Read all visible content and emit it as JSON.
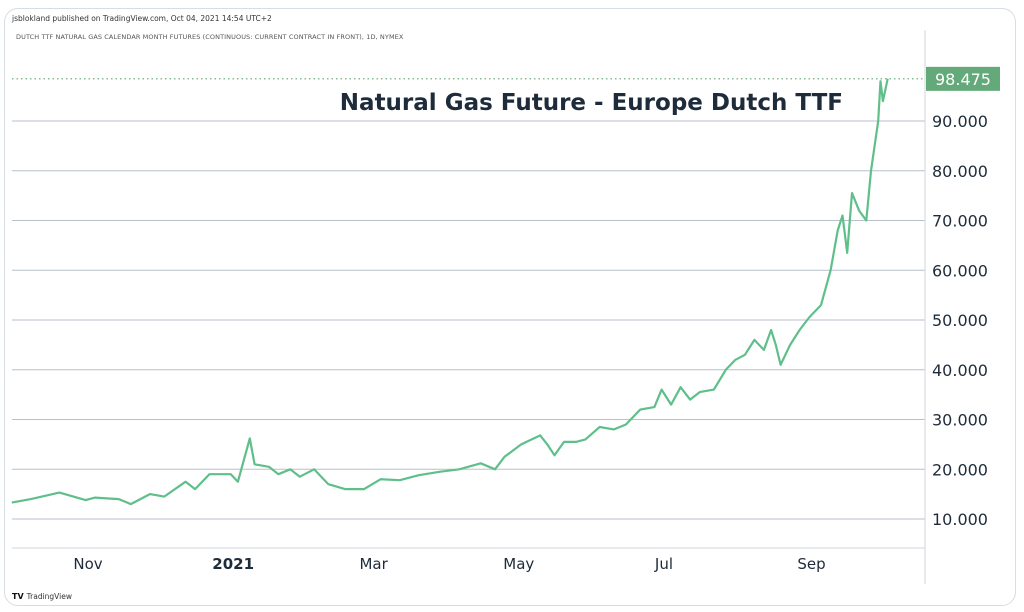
{
  "header": {
    "published": "jsblokland published on TradingView.com, Oct 04, 2021 14:54 UTC+2",
    "symbol": "DUTCH TTF NATURAL GAS CALENDAR MONTH FUTURES (CONTINUOUS: CURRENT CONTRACT IN FRONT), 1D, NYMEX"
  },
  "footer": {
    "brand": "TradingView",
    "logo": "TV"
  },
  "colors": {
    "line": "#5fbf8a",
    "price_tag": "#64a979",
    "grid": "#b9c0cc",
    "text": "#1e2b3a"
  },
  "chart_data": {
    "type": "line",
    "title": "Natural Gas Future - Europe Dutch TTF",
    "xlabel": "",
    "ylabel": "",
    "x_unit": "days since 2020-11-01",
    "x_ticks": [
      {
        "d": 0,
        "label": "Nov"
      },
      {
        "d": 61,
        "label": "2021",
        "bold": true
      },
      {
        "d": 120,
        "label": "Mar"
      },
      {
        "d": 181,
        "label": "May"
      },
      {
        "d": 242,
        "label": "Jul"
      },
      {
        "d": 304,
        "label": "Sep"
      }
    ],
    "y_ticks": [
      "10.000",
      "20.000",
      "30.000",
      "40.000",
      "50.000",
      "60.000",
      "70.000",
      "80.000",
      "90.000"
    ],
    "y_tick_values": [
      10,
      20,
      30,
      40,
      50,
      60,
      70,
      80,
      90
    ],
    "ylim": [
      5,
      104
    ],
    "xlim": [
      -32,
      373
    ],
    "last_price": "98.475",
    "grid": true,
    "series": [
      {
        "name": "Dutch TTF",
        "x": [
          -32,
          -24,
          -12,
          -1,
          3,
          13,
          18,
          26,
          32,
          41,
          45,
          51,
          60,
          63,
          68,
          70,
          76,
          80,
          85,
          89,
          95,
          101,
          108,
          116,
          123,
          131,
          139,
          148,
          156,
          165,
          171,
          175,
          182,
          190,
          193,
          196,
          200,
          205,
          209,
          215,
          221,
          226,
          232,
          238,
          241,
          245,
          249,
          253,
          257,
          263,
          268,
          272,
          276,
          280,
          284,
          287,
          289,
          291,
          295,
          299,
          303,
          308,
          312,
          315,
          317,
          319,
          321,
          324,
          327,
          329,
          332,
          333,
          334,
          336
        ],
        "values": [
          13.3,
          14,
          15.3,
          13.8,
          14.3,
          14,
          13,
          15,
          14.5,
          17.5,
          16,
          19,
          19,
          17.5,
          26.2,
          21,
          20.5,
          19,
          20,
          18.5,
          20,
          17,
          16,
          16,
          18,
          17.8,
          18.8,
          19.5,
          20,
          21.2,
          20,
          22.5,
          25,
          26.8,
          25,
          22.8,
          25.5,
          25.5,
          26,
          28.5,
          28,
          29,
          32,
          32.5,
          36,
          33,
          36.5,
          34,
          35.5,
          36,
          40,
          42,
          43,
          46,
          44,
          48,
          45,
          41,
          45,
          48,
          50.5,
          53,
          60,
          68,
          71,
          63.5,
          75.5,
          72,
          70,
          80,
          90,
          98,
          94,
          98.5
        ]
      }
    ]
  }
}
